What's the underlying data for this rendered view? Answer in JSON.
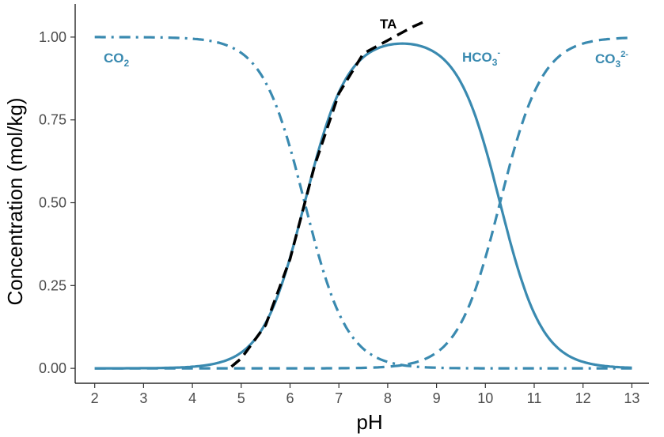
{
  "chart_data": {
    "type": "line",
    "xlabel": "pH",
    "ylabel": "Concentration (mol/kg)",
    "xlim": [
      1.6,
      13.35
    ],
    "ylim": [
      -0.045,
      1.1
    ],
    "xticks": [
      2,
      3,
      4,
      5,
      6,
      7,
      8,
      9,
      10,
      11,
      12,
      13
    ],
    "yticks": [
      {
        "value": 0.0,
        "label": "0.00"
      },
      {
        "value": 0.25,
        "label": "0.25"
      },
      {
        "value": 0.5,
        "label": "0.50"
      },
      {
        "value": 0.75,
        "label": "0.75"
      },
      {
        "value": 1.0,
        "label": "1.00"
      }
    ],
    "grid": false,
    "legend": "none",
    "pK1": 6.3,
    "pK2": 10.3,
    "series": [
      {
        "name": "CO2",
        "display_base": "CO",
        "display_sub": "2",
        "display_sup": "",
        "color": "#3a8ab0",
        "style": "dashdot",
        "x": [
          2,
          2.5,
          3,
          3.5,
          4,
          4.5,
          5,
          5.5,
          6,
          6.3,
          6.5,
          7,
          7.5,
          8,
          8.5,
          9,
          9.5,
          10,
          10.5,
          11,
          11.5,
          12,
          12.5,
          13
        ],
        "values": [
          1.0,
          1.0,
          0.9995,
          0.9984,
          0.995,
          0.9844,
          0.9524,
          0.8632,
          0.6661,
          0.4999,
          0.3868,
          0.1663,
          0.0593,
          0.0196,
          0.0063,
          0.0019,
          0.0005,
          0.0001,
          0.0,
          0.0,
          0.0,
          0.0,
          0.0,
          0.0
        ]
      },
      {
        "name": "HCO3-",
        "display_base": "HCO",
        "display_sub": "3",
        "display_sup": "-",
        "color": "#3a8ab0",
        "style": "solid",
        "x": [
          2,
          2.5,
          3,
          3.5,
          4,
          4.5,
          5,
          5.5,
          6,
          6.3,
          6.5,
          7,
          7.5,
          8,
          8.5,
          9,
          9.5,
          10,
          10.5,
          11,
          11.5,
          12,
          12.5,
          13
        ],
        "values": [
          0.0001,
          0.0002,
          0.0005,
          0.0016,
          0.005,
          0.0156,
          0.0476,
          0.1368,
          0.3339,
          0.4999,
          0.6131,
          0.8309,
          0.9344,
          0.9705,
          0.9774,
          0.9506,
          0.8633,
          0.6667,
          0.3868,
          0.1665,
          0.0594,
          0.0196,
          0.0063,
          0.002
        ]
      },
      {
        "name": "CO3 2-",
        "display_base": "CO",
        "display_sub": "3",
        "display_sup": "2-",
        "color": "#3a8ab0",
        "style": "dashed",
        "x": [
          2,
          2.5,
          3,
          3.5,
          4,
          4.5,
          5,
          5.5,
          6,
          6.3,
          6.5,
          7,
          7.5,
          8,
          8.5,
          9,
          9.5,
          10,
          10.5,
          11,
          11.5,
          12,
          12.5,
          13
        ],
        "values": [
          0.0,
          0.0,
          0.0,
          0.0,
          0.0,
          0.0,
          0.0,
          0.0,
          0.0,
          0.0001,
          0.0001,
          0.0008,
          0.0063,
          0.0099,
          0.0163,
          0.0475,
          0.1362,
          0.3333,
          0.6132,
          0.8335,
          0.9406,
          0.9804,
          0.9937,
          0.998
        ]
      },
      {
        "name": "TA",
        "display_base": "TA",
        "display_sub": "",
        "display_sup": "",
        "color": "#000000",
        "style": "dashed",
        "x": [
          4.8,
          5.0,
          5.5,
          6.0,
          6.5,
          7.0,
          7.5,
          8.0,
          8.5,
          8.8
        ],
        "values": [
          0.005,
          0.03,
          0.13,
          0.33,
          0.61,
          0.83,
          0.95,
          0.99,
          1.03,
          1.05
        ]
      }
    ]
  }
}
